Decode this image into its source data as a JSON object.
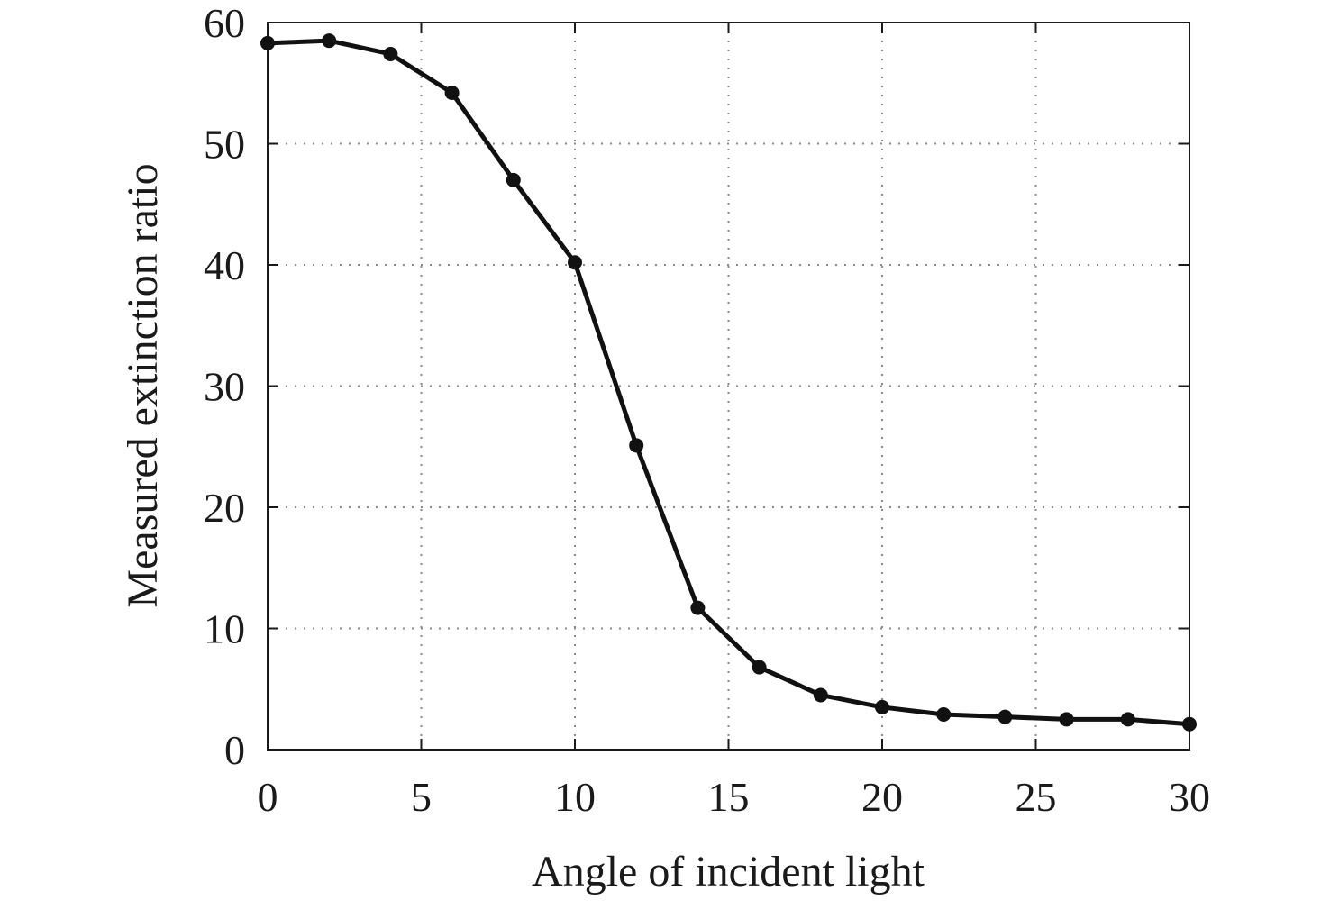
{
  "chart_data": {
    "type": "line",
    "title": "",
    "xlabel": "Angle of incident light",
    "ylabel": "Measured extinction ratio",
    "xlim": [
      0,
      30
    ],
    "ylim": [
      0,
      60
    ],
    "xticks": [
      0,
      5,
      10,
      15,
      20,
      25,
      30
    ],
    "yticks": [
      0,
      10,
      20,
      30,
      40,
      50,
      60
    ],
    "grid": true,
    "series": [
      {
        "x": [
          0,
          2,
          4,
          6,
          8,
          10,
          12,
          14,
          16,
          18,
          20,
          22,
          24,
          26,
          28,
          30
        ],
        "y": [
          58.3,
          58.5,
          57.4,
          54.2,
          47.0,
          40.2,
          25.1,
          11.7,
          6.8,
          4.5,
          3.5,
          2.9,
          2.7,
          2.5,
          2.5,
          2.1
        ],
        "color": "#111111",
        "marker": "circle"
      }
    ]
  }
}
